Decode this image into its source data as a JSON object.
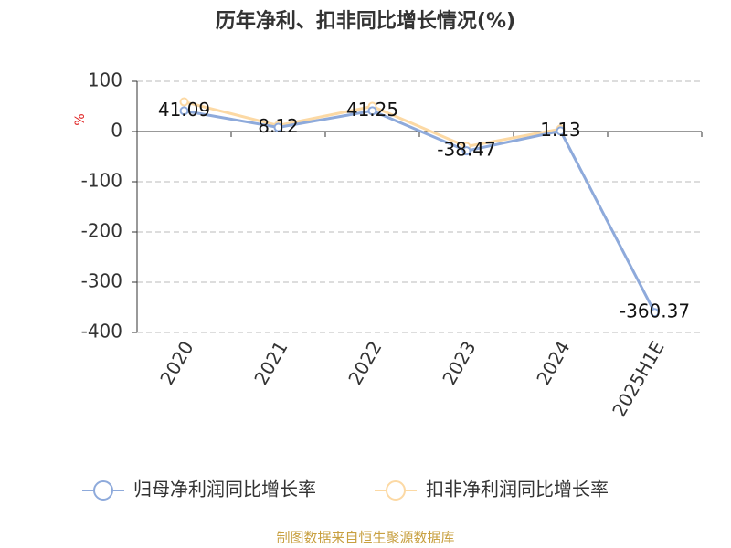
{
  "chart_data": {
    "type": "line",
    "title": "历年净利、扣非同比增长情况(%)",
    "y_label": "%",
    "categories": [
      "2020",
      "2021",
      "2022",
      "2023",
      "2024",
      "2025H1E"
    ],
    "series": [
      {
        "name": "归母净利润同比增长率",
        "color": "#8eaadb",
        "values": [
          41.09,
          8.12,
          41.25,
          -38.47,
          1.13,
          -360.37
        ]
      },
      {
        "name": "扣非净利润同比增长率",
        "color": "#fcd9a4",
        "values": [
          59,
          12,
          50,
          -30,
          5,
          null
        ]
      }
    ],
    "ylim": [
      -400,
      100
    ],
    "yticks": [
      -400,
      -300,
      -200,
      -100,
      0,
      100
    ],
    "grid": true,
    "source": "制图数据来自恒生聚源数据库"
  }
}
